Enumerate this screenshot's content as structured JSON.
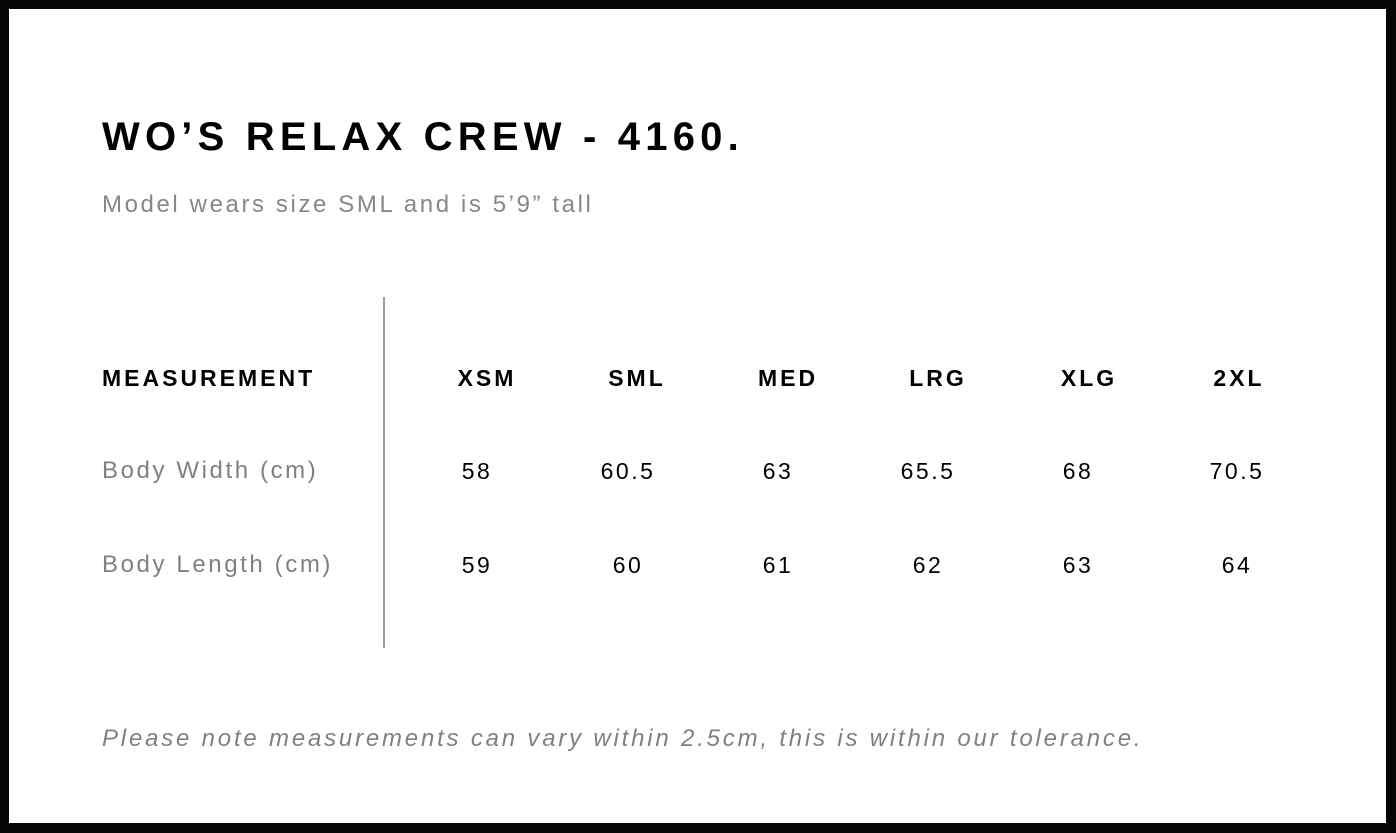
{
  "title": "WO’S RELAX CREW - 4160.",
  "subtitle": "Model wears size SML and is 5’9” tall",
  "table": {
    "header_label": "MEASUREMENT",
    "sizes": [
      "XSM",
      "SML",
      "MED",
      "LRG",
      "XLG",
      "2XL"
    ],
    "rows": [
      {
        "label": "Body Width (cm)",
        "values": [
          "58",
          "60.5",
          "63",
          "65.5",
          "68",
          "70.5"
        ]
      },
      {
        "label": "Body Length (cm)",
        "values": [
          "59",
          "60",
          "61",
          "62",
          "63",
          "64"
        ]
      }
    ]
  },
  "note": "Please note measurements can vary within 2.5cm, this is within our tolerance."
}
